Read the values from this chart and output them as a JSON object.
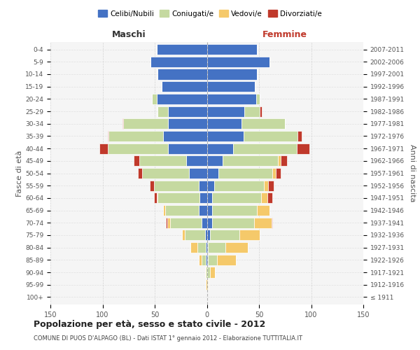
{
  "age_groups": [
    "100+",
    "95-99",
    "90-94",
    "85-89",
    "80-84",
    "75-79",
    "70-74",
    "65-69",
    "60-64",
    "55-59",
    "50-54",
    "45-49",
    "40-44",
    "35-39",
    "30-34",
    "25-29",
    "20-24",
    "15-19",
    "10-14",
    "5-9",
    "0-4"
  ],
  "birth_years": [
    "≤ 1911",
    "1912-1916",
    "1917-1921",
    "1922-1926",
    "1927-1931",
    "1932-1936",
    "1937-1941",
    "1942-1946",
    "1947-1951",
    "1952-1956",
    "1957-1961",
    "1962-1966",
    "1967-1971",
    "1972-1976",
    "1977-1981",
    "1982-1986",
    "1987-1991",
    "1992-1996",
    "1997-2001",
    "2002-2006",
    "2007-2011"
  ],
  "maschi": {
    "celibi": [
      0,
      0,
      0,
      1,
      1,
      2,
      5,
      8,
      7,
      8,
      17,
      20,
      37,
      42,
      37,
      37,
      48,
      43,
      47,
      54,
      48
    ],
    "coniugati": [
      0,
      0,
      1,
      4,
      8,
      19,
      30,
      32,
      40,
      43,
      45,
      45,
      58,
      52,
      43,
      10,
      5,
      0,
      0,
      0,
      0
    ],
    "vedovi": [
      0,
      1,
      1,
      3,
      7,
      3,
      3,
      2,
      1,
      0,
      0,
      0,
      0,
      0,
      0,
      0,
      0,
      0,
      0,
      0,
      0
    ],
    "divorziati": [
      0,
      0,
      0,
      0,
      0,
      0,
      1,
      0,
      3,
      4,
      4,
      5,
      8,
      1,
      1,
      0,
      0,
      0,
      0,
      0,
      0
    ]
  },
  "femmine": {
    "nubili": [
      0,
      0,
      0,
      1,
      1,
      3,
      5,
      5,
      5,
      7,
      11,
      15,
      25,
      35,
      33,
      36,
      47,
      46,
      48,
      60,
      48
    ],
    "coniugate": [
      0,
      1,
      3,
      9,
      17,
      28,
      40,
      43,
      47,
      48,
      52,
      53,
      61,
      52,
      42,
      15,
      4,
      0,
      0,
      0,
      0
    ],
    "vedove": [
      0,
      1,
      5,
      18,
      21,
      20,
      17,
      12,
      6,
      4,
      3,
      3,
      0,
      0,
      0,
      0,
      0,
      0,
      0,
      0,
      0
    ],
    "divorziate": [
      0,
      0,
      0,
      0,
      0,
      0,
      1,
      0,
      5,
      5,
      5,
      6,
      12,
      4,
      0,
      2,
      0,
      0,
      0,
      0,
      0
    ]
  },
  "colors": {
    "celibi": "#4472C4",
    "coniugati": "#c5d9a0",
    "vedovi": "#f5c96a",
    "divorziati": "#c0392b"
  },
  "title": "Popolazione per età, sesso e stato civile - 2012",
  "subtitle": "COMUNE DI PUOS D'ALPAGO (BL) - Dati ISTAT 1° gennaio 2012 - Elaborazione TUTTITALIA.IT",
  "xlabel_left": "Maschi",
  "xlabel_right": "Femmine",
  "ylabel_left": "Fasce di età",
  "ylabel_right": "Anni di nascita",
  "xlim": 150,
  "bg_color": "#f5f5f5",
  "grid_color": "#cccccc"
}
